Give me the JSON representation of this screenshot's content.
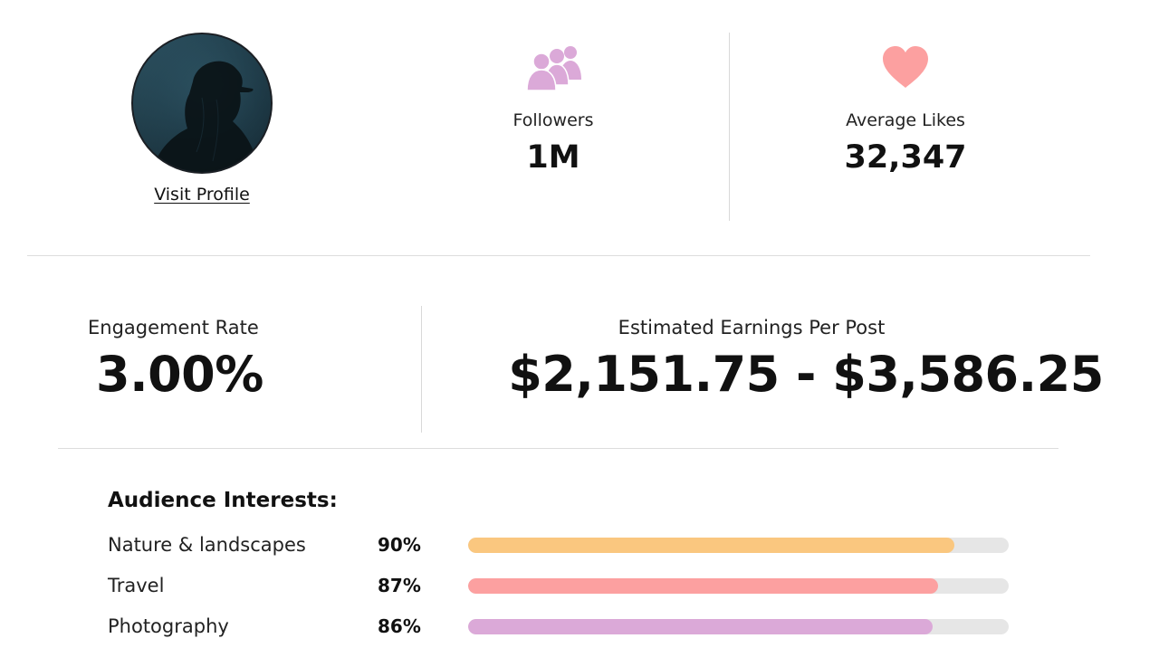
{
  "profile": {
    "visit_label": "Visit Profile"
  },
  "stats": {
    "followers": {
      "label": "Followers",
      "value": "1M",
      "icon": "users-group-icon",
      "icon_color": "#dba9d8"
    },
    "average_likes": {
      "label": "Average Likes",
      "value": "32,347",
      "icon": "heart-icon",
      "icon_color": "#fca0a0"
    }
  },
  "engagement": {
    "label": "Engagement Rate",
    "value": "3.00%"
  },
  "earnings": {
    "label": "Estimated Earnings Per Post",
    "value": "$2,151.75 - $3,586.25"
  },
  "audience_interests": {
    "title": "Audience Interests:",
    "items": [
      {
        "name": "Nature & landscapes",
        "percent_label": "90%",
        "percent": 90,
        "color": "#fac77f"
      },
      {
        "name": "Travel",
        "percent_label": "87%",
        "percent": 87,
        "color": "#fca0a0"
      },
      {
        "name": "Photography",
        "percent_label": "86%",
        "percent": 86,
        "color": "#dba9d8"
      }
    ],
    "track_color": "#e6e6e6"
  }
}
